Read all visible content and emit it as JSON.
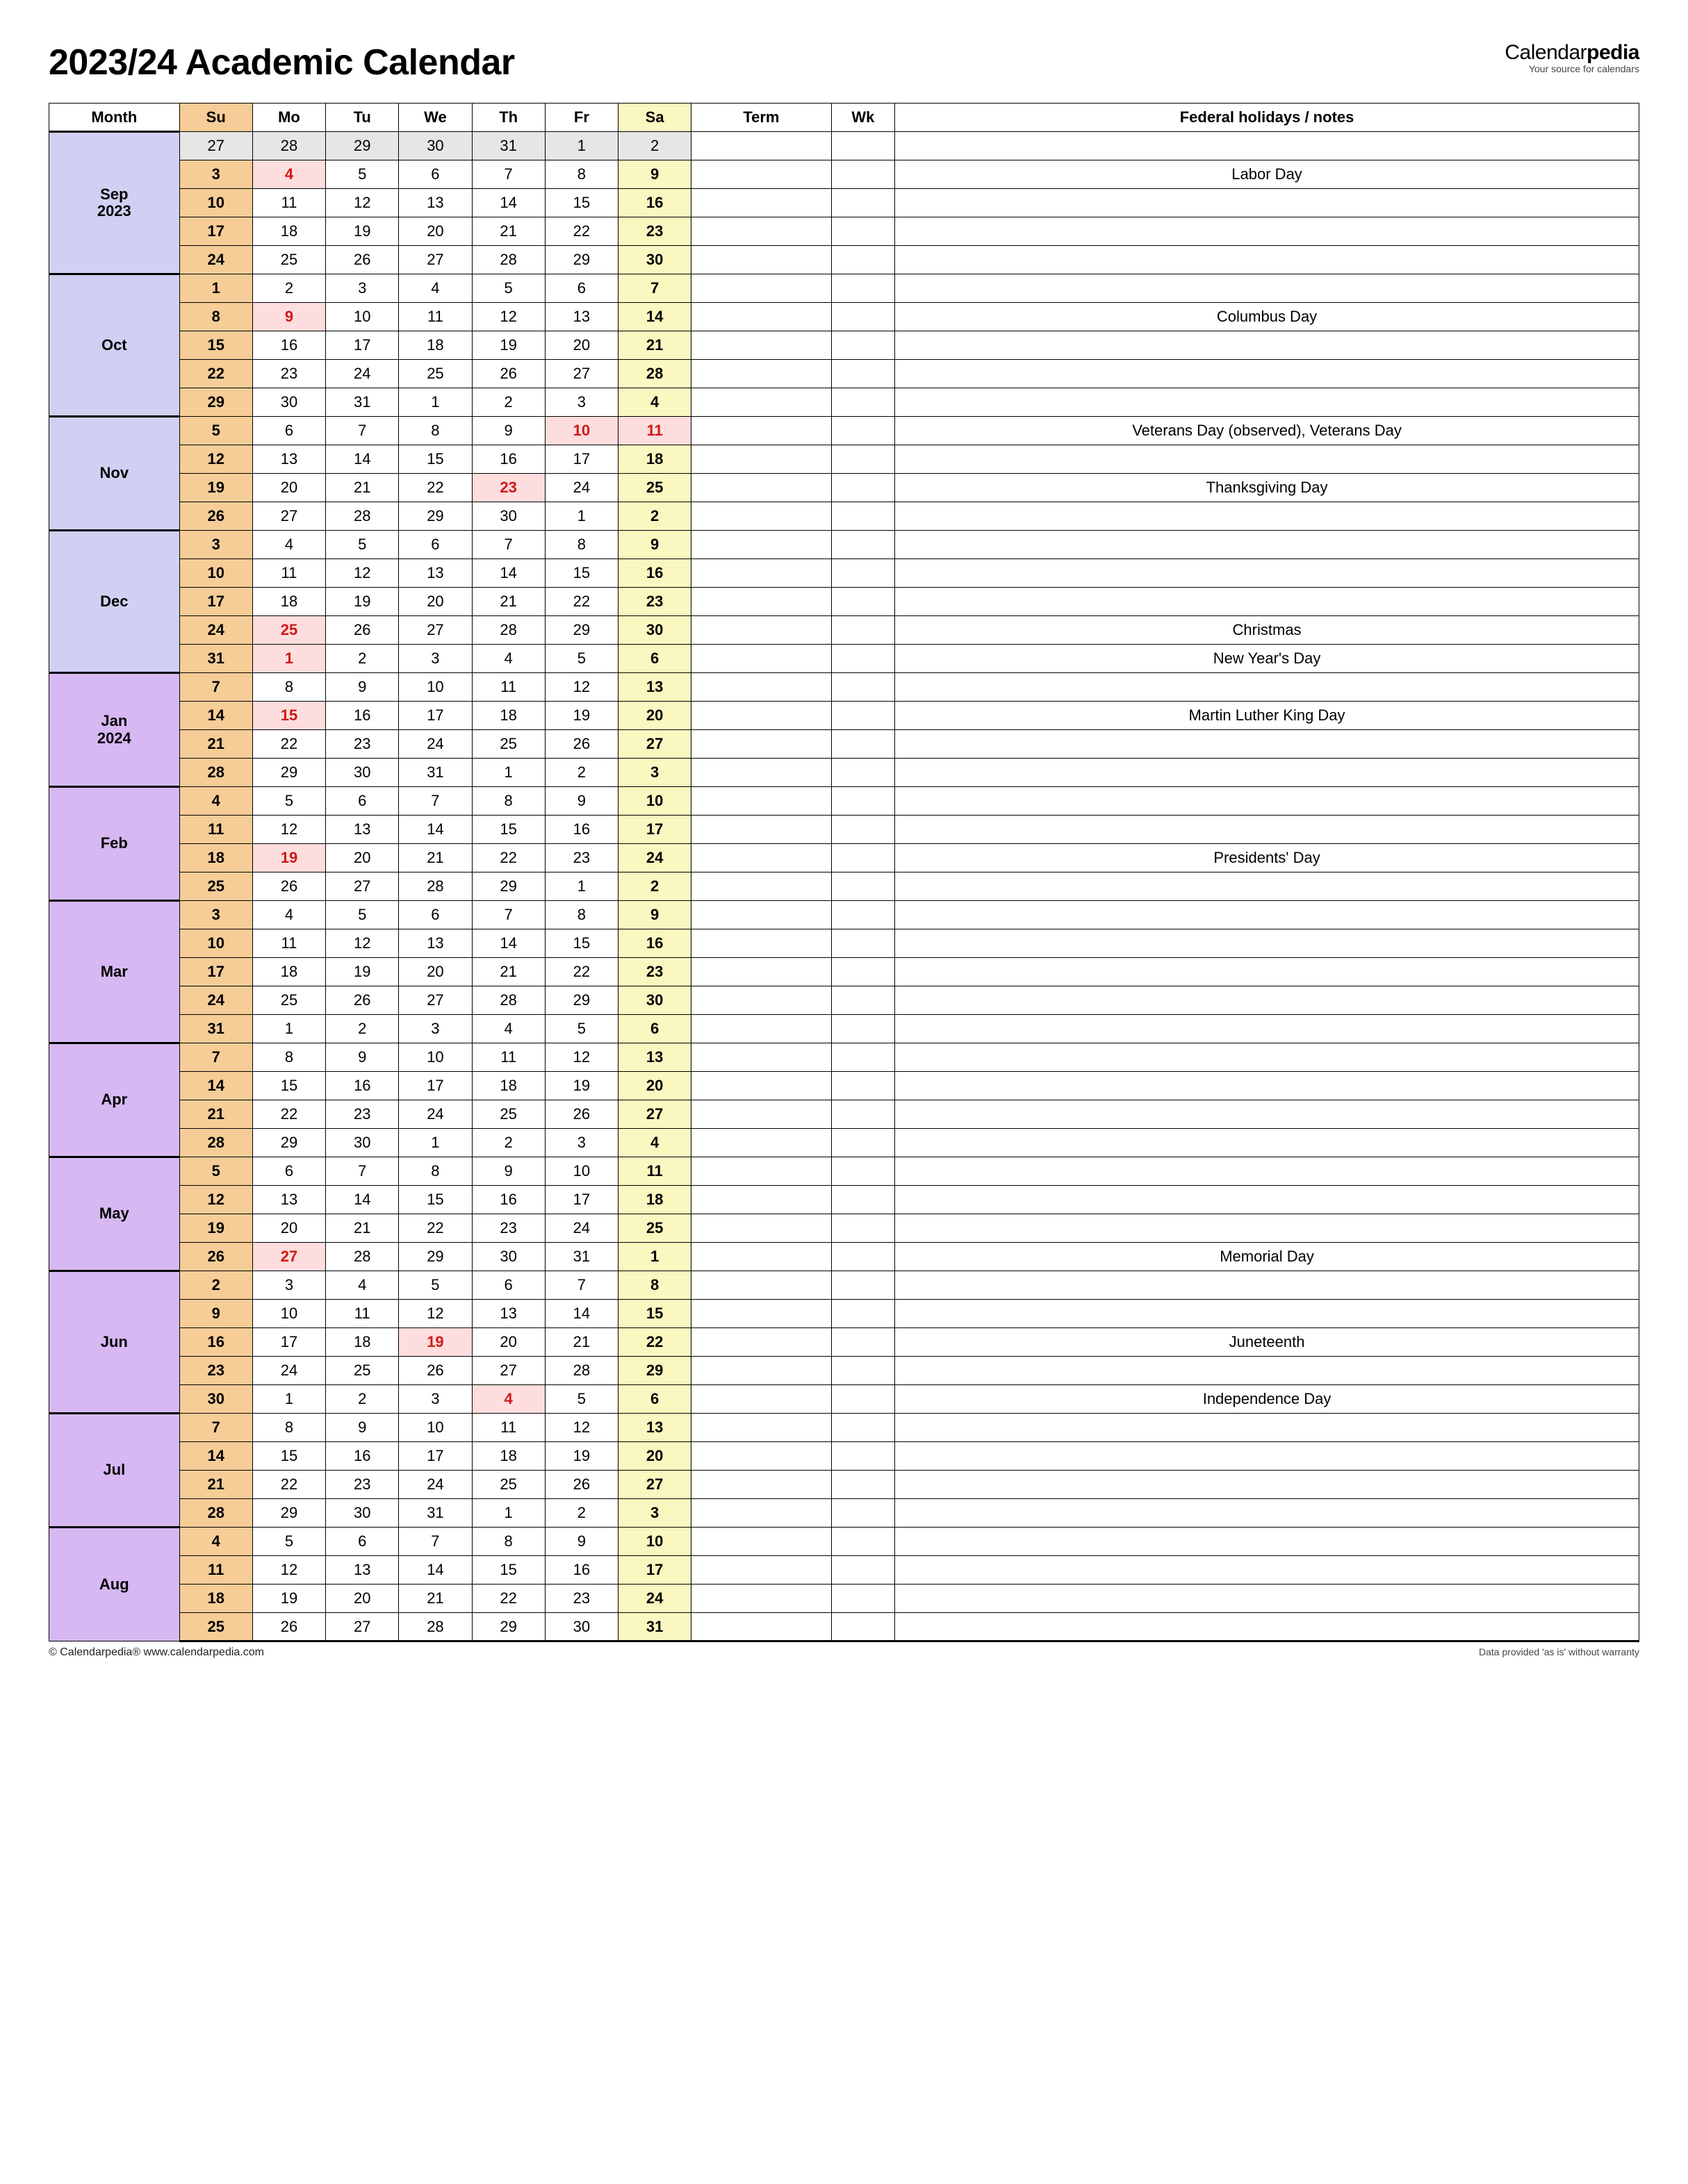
{
  "title": "2023/24 Academic Calendar",
  "brand": {
    "prefix": "Calendar",
    "suffix": "pedia",
    "tagline": "Your source for calendars"
  },
  "footer": {
    "left": "© Calendarpedia®   www.calendarpedia.com",
    "right": "Data provided 'as is' without warranty"
  },
  "headers": {
    "month": "Month",
    "su": "Su",
    "mo": "Mo",
    "tu": "Tu",
    "we": "We",
    "th": "Th",
    "fr": "Fr",
    "sa": "Sa",
    "term": "Term",
    "wk": "Wk",
    "notes": "Federal holidays / notes"
  },
  "colors": {
    "header_month_bg": "#e6e6e6",
    "sun_bg": "#f6cd97",
    "sat_bg": "#fbf7c0",
    "hol_bg": "#fddddd",
    "hol_text": "#d01818",
    "fall_bg": "#d0d0f2",
    "spring_bg": "#d7b8f2"
  },
  "months": [
    {
      "label": "Sep 2023",
      "season": "fall",
      "weeks": [
        {
          "pad": true,
          "days": [
            27,
            28,
            29,
            30,
            31,
            1,
            2
          ],
          "note": ""
        },
        {
          "days": [
            3,
            4,
            5,
            6,
            7,
            8,
            9
          ],
          "hol": [
            1
          ],
          "note": "Labor Day"
        },
        {
          "days": [
            10,
            11,
            12,
            13,
            14,
            15,
            16
          ],
          "note": ""
        },
        {
          "days": [
            17,
            18,
            19,
            20,
            21,
            22,
            23
          ],
          "note": ""
        },
        {
          "days": [
            24,
            25,
            26,
            27,
            28,
            29,
            30
          ],
          "note": ""
        }
      ]
    },
    {
      "label": "Oct",
      "season": "fall",
      "weeks": [
        {
          "days": [
            1,
            2,
            3,
            4,
            5,
            6,
            7
          ],
          "note": ""
        },
        {
          "days": [
            8,
            9,
            10,
            11,
            12,
            13,
            14
          ],
          "hol": [
            1
          ],
          "note": "Columbus Day"
        },
        {
          "days": [
            15,
            16,
            17,
            18,
            19,
            20,
            21
          ],
          "note": ""
        },
        {
          "days": [
            22,
            23,
            24,
            25,
            26,
            27,
            28
          ],
          "note": ""
        },
        {
          "days": [
            29,
            30,
            31,
            1,
            2,
            3,
            4
          ],
          "note": ""
        }
      ]
    },
    {
      "label": "Nov",
      "season": "fall",
      "weeks": [
        {
          "days": [
            5,
            6,
            7,
            8,
            9,
            10,
            11
          ],
          "hol": [
            5,
            6
          ],
          "note": "Veterans Day (observed), Veterans Day"
        },
        {
          "days": [
            12,
            13,
            14,
            15,
            16,
            17,
            18
          ],
          "note": ""
        },
        {
          "days": [
            19,
            20,
            21,
            22,
            23,
            24,
            25
          ],
          "hol": [
            4
          ],
          "note": "Thanksgiving Day"
        },
        {
          "days": [
            26,
            27,
            28,
            29,
            30,
            1,
            2
          ],
          "note": ""
        }
      ]
    },
    {
      "label": "Dec",
      "season": "fall",
      "weeks": [
        {
          "days": [
            3,
            4,
            5,
            6,
            7,
            8,
            9
          ],
          "note": ""
        },
        {
          "days": [
            10,
            11,
            12,
            13,
            14,
            15,
            16
          ],
          "note": ""
        },
        {
          "days": [
            17,
            18,
            19,
            20,
            21,
            22,
            23
          ],
          "note": ""
        },
        {
          "days": [
            24,
            25,
            26,
            27,
            28,
            29,
            30
          ],
          "hol": [
            1
          ],
          "note": "Christmas"
        },
        {
          "days": [
            31,
            1,
            2,
            3,
            4,
            5,
            6
          ],
          "hol": [
            1
          ],
          "note": "New Year's Day"
        }
      ]
    },
    {
      "label": "Jan 2024",
      "season": "spring",
      "weeks": [
        {
          "days": [
            7,
            8,
            9,
            10,
            11,
            12,
            13
          ],
          "note": ""
        },
        {
          "days": [
            14,
            15,
            16,
            17,
            18,
            19,
            20
          ],
          "hol": [
            1
          ],
          "note": "Martin Luther King Day"
        },
        {
          "days": [
            21,
            22,
            23,
            24,
            25,
            26,
            27
          ],
          "note": ""
        },
        {
          "days": [
            28,
            29,
            30,
            31,
            1,
            2,
            3
          ],
          "note": ""
        }
      ]
    },
    {
      "label": "Feb",
      "season": "spring",
      "weeks": [
        {
          "days": [
            4,
            5,
            6,
            7,
            8,
            9,
            10
          ],
          "note": ""
        },
        {
          "days": [
            11,
            12,
            13,
            14,
            15,
            16,
            17
          ],
          "note": ""
        },
        {
          "days": [
            18,
            19,
            20,
            21,
            22,
            23,
            24
          ],
          "hol": [
            1
          ],
          "note": "Presidents' Day"
        },
        {
          "days": [
            25,
            26,
            27,
            28,
            29,
            1,
            2
          ],
          "note": ""
        }
      ]
    },
    {
      "label": "Mar",
      "season": "spring",
      "weeks": [
        {
          "days": [
            3,
            4,
            5,
            6,
            7,
            8,
            9
          ],
          "note": ""
        },
        {
          "days": [
            10,
            11,
            12,
            13,
            14,
            15,
            16
          ],
          "note": ""
        },
        {
          "days": [
            17,
            18,
            19,
            20,
            21,
            22,
            23
          ],
          "note": ""
        },
        {
          "days": [
            24,
            25,
            26,
            27,
            28,
            29,
            30
          ],
          "note": ""
        },
        {
          "days": [
            31,
            1,
            2,
            3,
            4,
            5,
            6
          ],
          "note": ""
        }
      ]
    },
    {
      "label": "Apr",
      "season": "spring",
      "weeks": [
        {
          "days": [
            7,
            8,
            9,
            10,
            11,
            12,
            13
          ],
          "note": ""
        },
        {
          "days": [
            14,
            15,
            16,
            17,
            18,
            19,
            20
          ],
          "note": ""
        },
        {
          "days": [
            21,
            22,
            23,
            24,
            25,
            26,
            27
          ],
          "note": ""
        },
        {
          "days": [
            28,
            29,
            30,
            1,
            2,
            3,
            4
          ],
          "note": ""
        }
      ]
    },
    {
      "label": "May",
      "season": "spring",
      "weeks": [
        {
          "days": [
            5,
            6,
            7,
            8,
            9,
            10,
            11
          ],
          "note": ""
        },
        {
          "days": [
            12,
            13,
            14,
            15,
            16,
            17,
            18
          ],
          "note": ""
        },
        {
          "days": [
            19,
            20,
            21,
            22,
            23,
            24,
            25
          ],
          "note": ""
        },
        {
          "days": [
            26,
            27,
            28,
            29,
            30,
            31,
            1
          ],
          "hol": [
            1
          ],
          "note": "Memorial Day"
        }
      ]
    },
    {
      "label": "Jun",
      "season": "spring",
      "weeks": [
        {
          "days": [
            2,
            3,
            4,
            5,
            6,
            7,
            8
          ],
          "note": ""
        },
        {
          "days": [
            9,
            10,
            11,
            12,
            13,
            14,
            15
          ],
          "note": ""
        },
        {
          "days": [
            16,
            17,
            18,
            19,
            20,
            21,
            22
          ],
          "hol": [
            3
          ],
          "note": "Juneteenth"
        },
        {
          "days": [
            23,
            24,
            25,
            26,
            27,
            28,
            29
          ],
          "note": ""
        },
        {
          "days": [
            30,
            1,
            2,
            3,
            4,
            5,
            6
          ],
          "hol": [
            4
          ],
          "note": "Independence Day"
        }
      ]
    },
    {
      "label": "Jul",
      "season": "spring",
      "weeks": [
        {
          "days": [
            7,
            8,
            9,
            10,
            11,
            12,
            13
          ],
          "note": ""
        },
        {
          "days": [
            14,
            15,
            16,
            17,
            18,
            19,
            20
          ],
          "note": ""
        },
        {
          "days": [
            21,
            22,
            23,
            24,
            25,
            26,
            27
          ],
          "note": ""
        },
        {
          "days": [
            28,
            29,
            30,
            31,
            1,
            2,
            3
          ],
          "note": ""
        }
      ]
    },
    {
      "label": "Aug",
      "season": "spring",
      "weeks": [
        {
          "days": [
            4,
            5,
            6,
            7,
            8,
            9,
            10
          ],
          "note": ""
        },
        {
          "days": [
            11,
            12,
            13,
            14,
            15,
            16,
            17
          ],
          "note": ""
        },
        {
          "days": [
            18,
            19,
            20,
            21,
            22,
            23,
            24
          ],
          "note": ""
        },
        {
          "days": [
            25,
            26,
            27,
            28,
            29,
            30,
            31
          ],
          "note": ""
        }
      ]
    }
  ]
}
